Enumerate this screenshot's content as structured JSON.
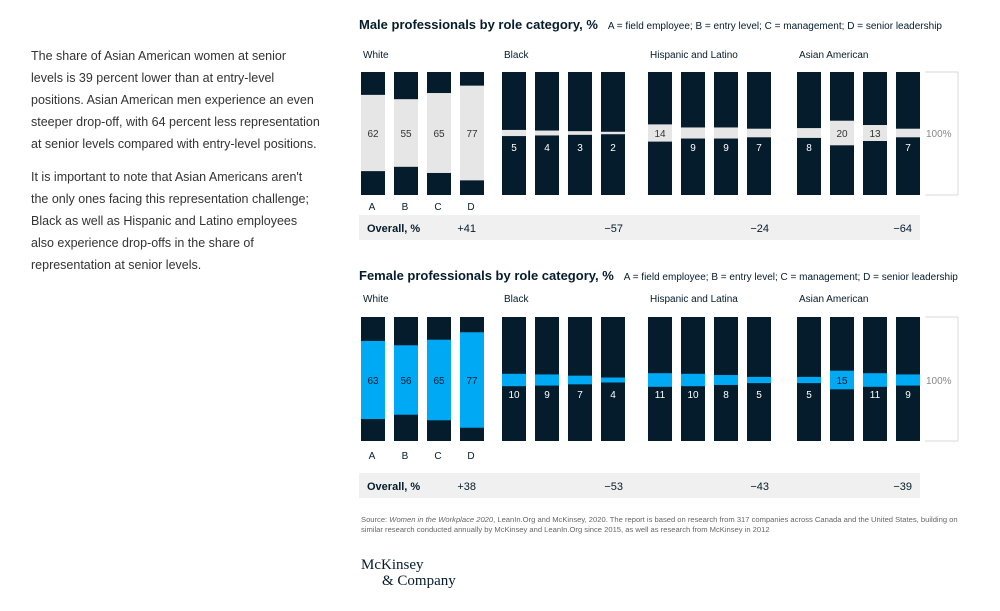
{
  "intro": {
    "paragraphs": [
      "The share of Asian American women at senior levels is 39 percent lower than at entry-level positions. Asian American men experience an even steeper drop-off, with 64 percent less representation at senior levels compared with entry-level positions.",
      "It is important to note that Asian Americans aren't the only ones facing this representation challenge; Black as well as Hispanic and Latino employees also experience drop-offs in the share of representation at senior levels."
    ]
  },
  "colors": {
    "navy": "#051c2c",
    "male_fill": "#e6e6e6",
    "female_fill": "#00a9f4",
    "overall_bg": "#f0f0f0",
    "axis_line": "#d9d9d9"
  },
  "chart_data": [
    {
      "type": "bar",
      "title": "Male professionals by role category, %",
      "legend": "A = field employee; B = entry level; C = management; D = senior leadership",
      "categories": [
        "A",
        "B",
        "C",
        "D"
      ],
      "scale_label": "100%",
      "overall_label": "Overall, %",
      "series": [
        {
          "name": "White",
          "values": [
            62,
            55,
            65,
            77
          ],
          "labels": [
            "62",
            "55",
            "65",
            "77"
          ],
          "overall": "+41"
        },
        {
          "name": "Black",
          "values": [
            5,
            4,
            3,
            2
          ],
          "labels": [
            "5",
            "4",
            "3",
            "2"
          ],
          "overall": "−57"
        },
        {
          "name": "Hispanic and Latino",
          "values": [
            14,
            9,
            9,
            7
          ],
          "labels": [
            "14",
            "9",
            "9",
            "7"
          ],
          "overall": "−24"
        },
        {
          "name": "Asian American",
          "values": [
            8,
            20,
            13,
            7
          ],
          "labels": [
            "8",
            "20",
            "13",
            "7"
          ],
          "overall": "−64"
        }
      ]
    },
    {
      "type": "bar",
      "title": "Female professionals by role category, %",
      "legend": "A = field employee; B = entry level; C = management; D = senior leadership",
      "categories": [
        "A",
        "B",
        "C",
        "D"
      ],
      "scale_label": "100%",
      "overall_label": "Overall, %",
      "series": [
        {
          "name": "White",
          "values": [
            63,
            56,
            65,
            77
          ],
          "labels": [
            "63",
            "56",
            "65",
            "77"
          ],
          "overall": "+38"
        },
        {
          "name": "Black",
          "values": [
            10,
            9,
            7,
            4
          ],
          "labels": [
            "10",
            "9",
            "7",
            "4"
          ],
          "overall": "−53"
        },
        {
          "name": "Hispanic and Latina",
          "values": [
            11,
            10,
            8,
            5
          ],
          "labels": [
            "11",
            "10",
            "8",
            "5"
          ],
          "overall": "−43"
        },
        {
          "name": "Asian American",
          "values": [
            5,
            15,
            11,
            9
          ],
          "labels": [
            "5",
            "15",
            "11",
            "9"
          ],
          "overall": "−39"
        }
      ]
    }
  ],
  "source": {
    "prefix": "Source: ",
    "title": "Women in the Workplace 2020",
    "rest": ", LeanIn.Org and McKinsey, 2020. The report is based on research from 317 companies across Canada and the United States, building on similar research conducted annually by McKinsey and LeanIn.Org since 2015, as well as research from McKinsey in 2012"
  },
  "logo": {
    "line1": "McKinsey",
    "line2": "& Company"
  }
}
